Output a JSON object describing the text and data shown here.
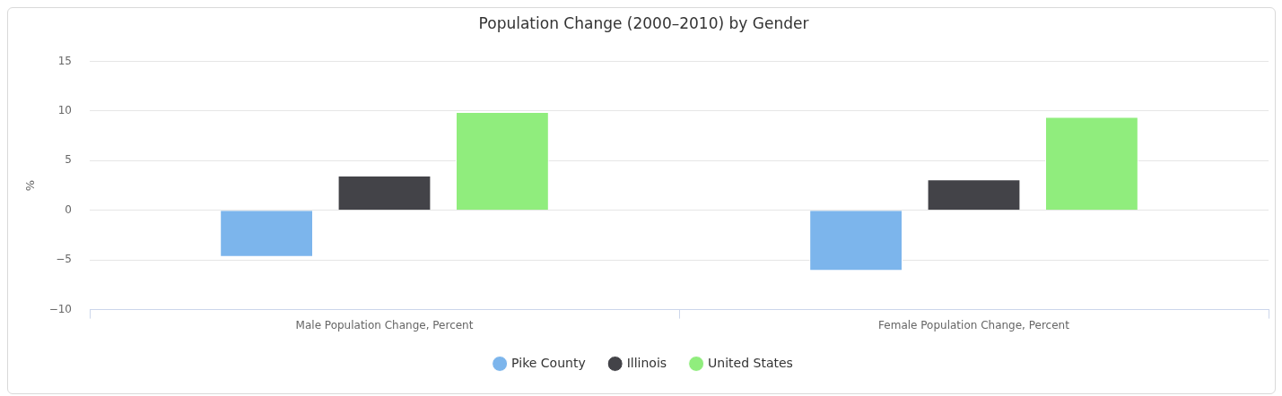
{
  "chart_data": {
    "type": "bar",
    "title": "Population Change (2000–2010) by Gender",
    "ylabel": "%",
    "categories": [
      "Male Population Change, Percent",
      "Female Population Change, Percent"
    ],
    "series": [
      {
        "name": "Pike County",
        "color": "#7cb5ec",
        "values": [
          -4.7,
          -6.1
        ]
      },
      {
        "name": "Illinois",
        "color": "#434348",
        "values": [
          3.5,
          3.1
        ]
      },
      {
        "name": "United States",
        "color": "#90ed7d",
        "values": [
          9.9,
          9.4
        ]
      }
    ],
    "ylim": [
      -10,
      15
    ],
    "yticks": [
      {
        "value": -10,
        "label": "−10"
      },
      {
        "value": -5,
        "label": "−5"
      },
      0,
      5,
      10,
      15
    ],
    "grid": "y",
    "legend": "bottom"
  }
}
